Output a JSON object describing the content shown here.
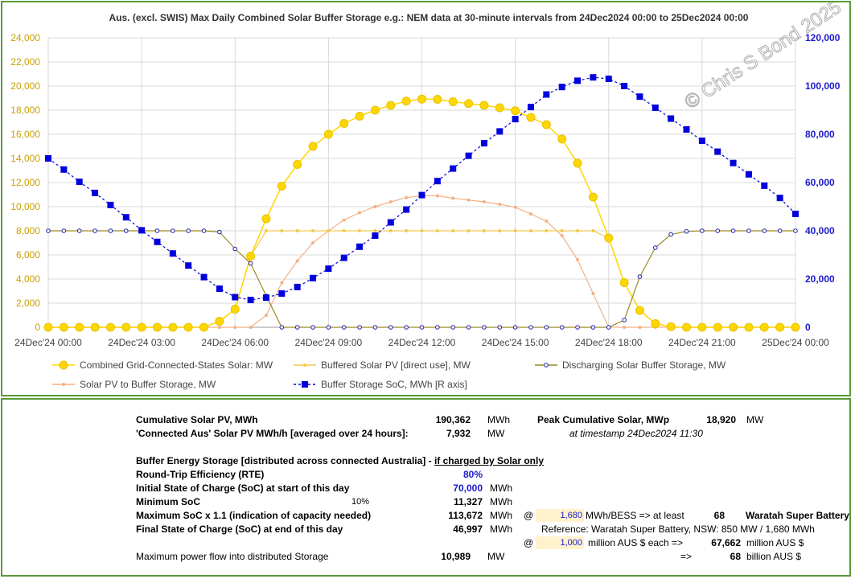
{
  "chart_data": {
    "type": "line",
    "title": "Aus. (excl. SWIS) Max Daily Combined Solar Buffer Storage e.g.: NEM data at 30-minute intervals from 24Dec2024 00:00 to 25Dec2024 00:00",
    "watermark": "© Chris S Bond  2025",
    "x_tick_labels": [
      "24Dec'24 00:00",
      "24Dec'24 03:00",
      "24Dec'24 06:00",
      "24Dec'24 09:00",
      "24Dec'24 12:00",
      "24Dec'24 15:00",
      "24Dec'24 18:00",
      "24Dec'24 21:00",
      "25Dec'24 00:00"
    ],
    "x_range": [
      0,
      48
    ],
    "y_left_ticks": [
      "0",
      "2,000",
      "4,000",
      "6,000",
      "8,000",
      "10,000",
      "12,000",
      "14,000",
      "16,000",
      "18,000",
      "20,000",
      "22,000",
      "24,000"
    ],
    "y_left_range": [
      0,
      24000
    ],
    "y_right_ticks": [
      "0",
      "20,000",
      "40,000",
      "60,000",
      "80,000",
      "100,000",
      "120,000"
    ],
    "y_right_range": [
      0,
      120000
    ],
    "grid": true,
    "legend_position": "bottom",
    "series": [
      {
        "name": "Combined Grid-Connected-States Solar: MW",
        "axis": "left",
        "color": "#ffd700",
        "marker": "circle-large",
        "dash": false,
        "values": [
          0,
          0,
          0,
          0,
          0,
          0,
          0,
          0,
          0,
          0,
          0,
          500,
          1500,
          5900,
          9000,
          11700,
          13500,
          15000,
          16000,
          16900,
          17500,
          18000,
          18400,
          18750,
          18920,
          18900,
          18700,
          18550,
          18400,
          18200,
          17950,
          17400,
          16800,
          15600,
          13600,
          10800,
          7400,
          3700,
          1400,
          300,
          50,
          0,
          0,
          0,
          0,
          0,
          0,
          0,
          0
        ]
      },
      {
        "name": "Buffered Solar PV [direct use], MW",
        "axis": "left",
        "color": "#f2c94c",
        "marker": "dot-small",
        "dash": false,
        "values": [
          0,
          0,
          0,
          0,
          0,
          0,
          0,
          0,
          0,
          0,
          0,
          500,
          1500,
          5900,
          8000,
          8000,
          8000,
          8000,
          8000,
          8000,
          8000,
          8000,
          8000,
          8000,
          8000,
          8000,
          8000,
          8000,
          8000,
          8000,
          8000,
          8000,
          8000,
          8000,
          8000,
          8000,
          7400,
          3700,
          1400,
          300,
          50,
          0,
          0,
          0,
          0,
          0,
          0,
          0,
          0
        ]
      },
      {
        "name": "Discharging Solar Buffer Storage, MW",
        "axis": "left",
        "color": "#9a8a22",
        "marker": "ring-small",
        "dash": false,
        "values": [
          8000,
          8000,
          8000,
          8000,
          8000,
          8000,
          8000,
          8000,
          8000,
          8000,
          8000,
          7900,
          6500,
          5300,
          2600,
          0,
          0,
          0,
          0,
          0,
          0,
          0,
          0,
          0,
          0,
          0,
          0,
          0,
          0,
          0,
          0,
          0,
          0,
          0,
          0,
          0,
          0,
          600,
          4200,
          6600,
          7700,
          7950,
          8000,
          8000,
          8000,
          8000,
          8000,
          8000,
          8000
        ]
      },
      {
        "name": "Solar PV to Buffer Storage, MW",
        "axis": "left",
        "color": "#f4b183",
        "marker": "dot-small",
        "dash": false,
        "values": [
          0,
          0,
          0,
          0,
          0,
          0,
          0,
          0,
          0,
          0,
          0,
          0,
          0,
          0,
          1000,
          3700,
          5500,
          7000,
          8000,
          8900,
          9500,
          10000,
          10400,
          10750,
          10920,
          10900,
          10700,
          10550,
          10400,
          10200,
          9950,
          9400,
          8800,
          7600,
          5600,
          2800,
          0,
          0,
          0,
          0,
          0,
          0,
          0,
          0,
          0,
          0,
          0,
          0,
          0
        ]
      },
      {
        "name": "Buffer Storage SoC, MWh [R axis]",
        "axis": "right",
        "color": "#0000dd",
        "marker": "square",
        "dash": true,
        "values": [
          70000,
          65400,
          60300,
          55700,
          50700,
          45600,
          40200,
          35400,
          30600,
          25600,
          20800,
          16000,
          12500,
          11327,
          12300,
          14000,
          16700,
          20400,
          24300,
          28800,
          33400,
          38000,
          43500,
          48800,
          54800,
          60600,
          65800,
          71100,
          76300,
          81200,
          86300,
          91300,
          96500,
          99600,
          102200,
          103600,
          103000,
          100000,
          95600,
          91000,
          86500,
          82000,
          77300,
          72800,
          68100,
          63400,
          58700,
          53600,
          46997
        ]
      }
    ]
  },
  "table": {
    "cum_solar_label": "Cumulative Solar PV, MWh",
    "cum_solar_value": "190,362",
    "cum_solar_unit": "MWh",
    "peak_label": "Peak Cumulative Solar, MWp",
    "peak_value": "18,920",
    "peak_unit": "MW",
    "avg_label": "'Connected Aus' Solar PV MWh/h [averaged over 24 hours]:",
    "avg_value": "7,932",
    "avg_unit": "MW",
    "timestamp_text": "at timestamp 24Dec2024 11:30",
    "buffer_label_a": "Buffer Energy Storage [distributed across connected Australia] - ",
    "buffer_label_b": "if charged by Solar only",
    "rte_label": "Round-Trip Efficiency (RTE)",
    "rte_value": "80%",
    "init_label": "Initial State of Charge (SoC) at start of this day",
    "init_value": "70,000",
    "init_unit": "MWh",
    "min_label": "Minimum SoC",
    "min_pct": "10%",
    "min_value": "11,327",
    "min_unit": "MWh",
    "max_label": "Maximum SoC x 1.1 (indication of capacity needed)",
    "max_value": "113,672",
    "max_unit": "MWh",
    "at1": "@",
    "bess_mwh": "1,680",
    "bess_text": "MWh/BESS => at least",
    "bess_count": "68",
    "bess_name": "Waratah Super Battery",
    "final_label": "Final State of Charge (SoC) at end of this day",
    "final_value": "46,997",
    "final_unit": "MWh",
    "reference_text": "Reference: Waratah Super Battery, NSW: 850 MW / 1,680 MWh",
    "at2": "@",
    "cost_each": "1,000",
    "cost_text": "million AUS $ each =>",
    "cost_total": "67,662",
    "cost_total_unit": "million AUS $",
    "maxpow_label": "Maximum power flow into distributed Storage",
    "maxpow_value": "10,989",
    "maxpow_unit": "MW",
    "arrow": "=>",
    "billion_value": "68",
    "billion_unit": "billion AUS $"
  }
}
